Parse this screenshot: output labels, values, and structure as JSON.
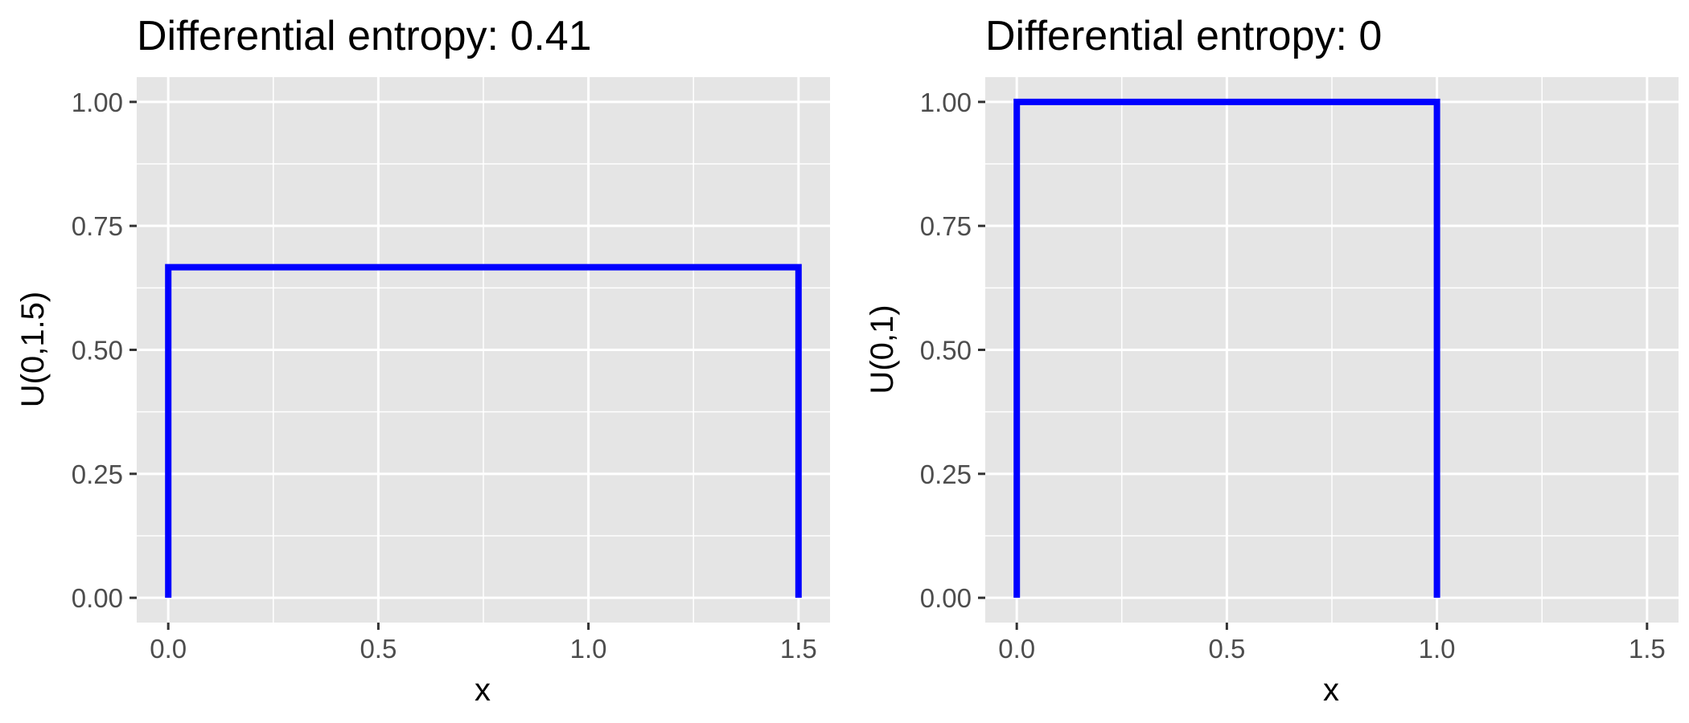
{
  "colors": {
    "panel_background": "#e5e5e5",
    "grid_major": "#ffffff",
    "grid_minor": "#f2f2f2",
    "series_line": "#0000ff",
    "tick_mark": "#333333",
    "tick_label": "#4d4d4d",
    "text": "#000000"
  },
  "chart_data": [
    {
      "type": "line",
      "title": "Differential entropy: 0.41",
      "xlabel": "x",
      "ylabel": "U(0,1.5)",
      "xlim": [
        -0.075,
        1.575
      ],
      "ylim": [
        -0.05,
        1.05
      ],
      "x_ticks": [
        0,
        0.5,
        1,
        1.5
      ],
      "x_tick_labels": [
        "0.0",
        "0.5",
        "1.0",
        "1.5"
      ],
      "y_ticks": [
        0,
        0.25,
        0.5,
        0.75,
        1
      ],
      "y_tick_labels": [
        "0.00",
        "0.25",
        "0.50",
        "0.75",
        "1.00"
      ],
      "grid": true,
      "legend": "none",
      "series": [
        {
          "color": "#0000ff",
          "x": [
            0,
            0,
            1.5,
            1.5
          ],
          "y": [
            0,
            0.6667,
            0.6667,
            0
          ]
        }
      ]
    },
    {
      "type": "line",
      "title": "Differential entropy: 0",
      "xlabel": "x",
      "ylabel": "U(0,1)",
      "xlim": [
        -0.075,
        1.575
      ],
      "ylim": [
        -0.05,
        1.05
      ],
      "x_ticks": [
        0,
        0.5,
        1,
        1.5
      ],
      "x_tick_labels": [
        "0.0",
        "0.5",
        "1.0",
        "1.5"
      ],
      "y_ticks": [
        0,
        0.25,
        0.5,
        0.75,
        1
      ],
      "y_tick_labels": [
        "0.00",
        "0.25",
        "0.50",
        "0.75",
        "1.00"
      ],
      "grid": true,
      "legend": "none",
      "series": [
        {
          "color": "#0000ff",
          "x": [
            0,
            0,
            1,
            1
          ],
          "y": [
            0,
            1,
            1,
            0
          ]
        }
      ]
    }
  ]
}
